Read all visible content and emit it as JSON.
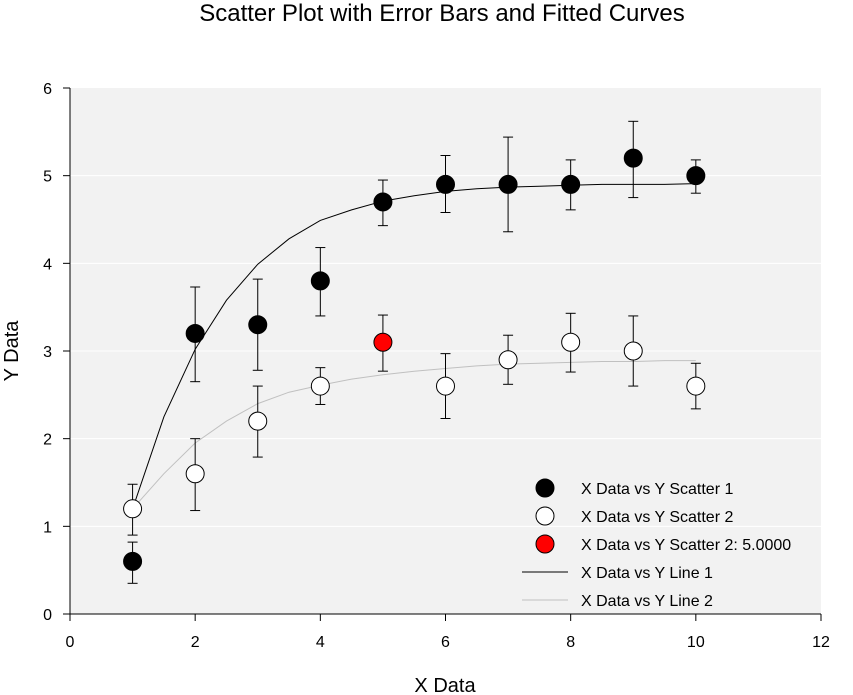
{
  "chart_data": {
    "type": "scatter",
    "title": "Scatter Plot with Error Bars and Fitted Curves",
    "xlabel": "X Data",
    "ylabel": "Y Data",
    "xlim": [
      0,
      12
    ],
    "ylim": [
      0,
      6
    ],
    "xticks": [
      "0",
      "2",
      "4",
      "6",
      "8",
      "10",
      "12"
    ],
    "yticks": [
      "0",
      "1",
      "2",
      "3",
      "4",
      "5",
      "6"
    ],
    "grid": "horizontal",
    "legend_position": "bottom-right",
    "background_color": "#f2f2f2",
    "series": [
      {
        "name": "X Data vs Y Scatter 1",
        "kind": "scatter",
        "marker_fill": "#000000",
        "x": [
          1,
          2,
          3,
          4,
          5,
          6,
          7,
          8,
          9,
          10
        ],
        "y": [
          0.6,
          3.2,
          3.3,
          3.8,
          4.7,
          4.9,
          4.9,
          4.9,
          5.2,
          5.0
        ],
        "err_low": [
          0.25,
          0.55,
          0.52,
          0.4,
          0.27,
          0.32,
          0.54,
          0.29,
          0.45,
          0.2
        ],
        "err_high": [
          0.22,
          0.53,
          0.52,
          0.38,
          0.25,
          0.33,
          0.54,
          0.28,
          0.42,
          0.18
        ]
      },
      {
        "name": "X Data vs Y Scatter 2",
        "kind": "scatter",
        "marker_fill": "#ffffff",
        "x": [
          1,
          2,
          3,
          4,
          6,
          7,
          8,
          9,
          10
        ],
        "y": [
          1.2,
          1.6,
          2.2,
          2.6,
          2.6,
          2.9,
          3.1,
          3.0,
          2.6
        ],
        "err_low": [
          0.3,
          0.42,
          0.41,
          0.21,
          0.37,
          0.28,
          0.34,
          0.4,
          0.26
        ],
        "err_high": [
          0.28,
          0.4,
          0.4,
          0.21,
          0.37,
          0.28,
          0.33,
          0.4,
          0.26
        ]
      },
      {
        "name": "X Data vs Y Scatter 2: 5.0000",
        "kind": "scatter",
        "marker_fill": "#ff0000",
        "x": [
          5
        ],
        "y": [
          3.1
        ],
        "err_low": [
          0.33
        ],
        "err_high": [
          0.31
        ]
      },
      {
        "name": "X Data vs Y Line 1",
        "kind": "line",
        "color": "#000000",
        "x": [
          1,
          1.5,
          2,
          2.5,
          3,
          3.5,
          4,
          4.5,
          5,
          5.5,
          6,
          6.5,
          7,
          7.5,
          8,
          8.5,
          9,
          9.5,
          10
        ],
        "y": [
          1.2,
          2.25,
          3.02,
          3.58,
          3.99,
          4.28,
          4.49,
          4.61,
          4.71,
          4.77,
          4.82,
          4.85,
          4.87,
          4.88,
          4.89,
          4.9,
          4.9,
          4.9,
          4.91
        ]
      },
      {
        "name": "X Data vs Y Line 2",
        "kind": "line",
        "color": "#c0c0c0",
        "x": [
          1,
          1.5,
          2,
          2.5,
          3,
          3.5,
          4,
          4.5,
          5,
          5.5,
          6,
          6.5,
          7,
          7.5,
          8,
          8.5,
          9,
          9.5,
          10
        ],
        "y": [
          1.2,
          1.6,
          1.95,
          2.2,
          2.4,
          2.53,
          2.61,
          2.68,
          2.73,
          2.77,
          2.8,
          2.83,
          2.85,
          2.86,
          2.87,
          2.88,
          2.88,
          2.89,
          2.89
        ]
      }
    ]
  }
}
